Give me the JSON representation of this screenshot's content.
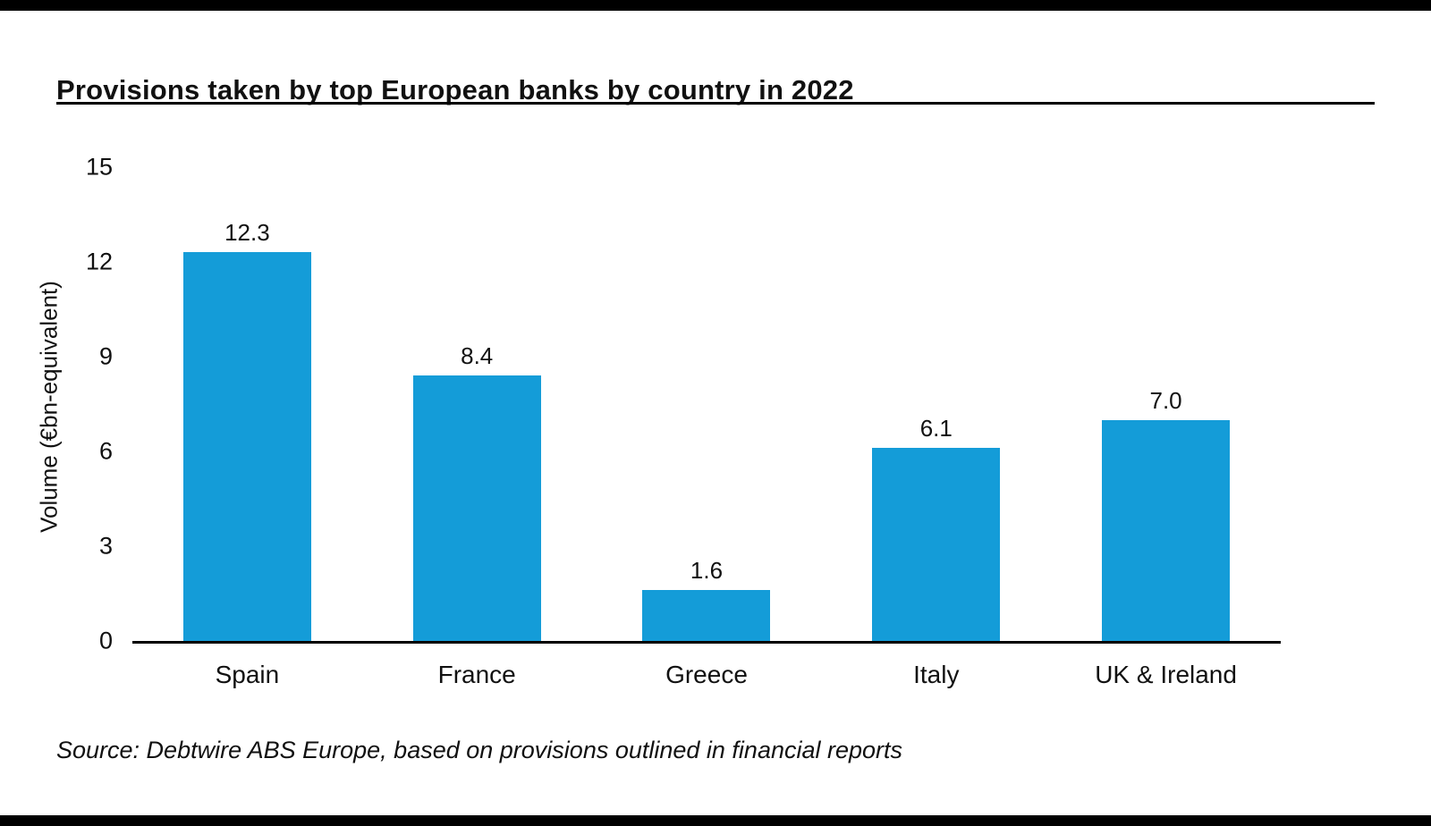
{
  "header": {
    "title": "Provisions taken by top European banks by country in 2022"
  },
  "chart_data": {
    "type": "bar",
    "title": "Provisions taken by top European banks by country in 2022",
    "categories": [
      "Spain",
      "France",
      "Greece",
      "Italy",
      "UK & Ireland"
    ],
    "values": [
      12.3,
      8.4,
      1.6,
      6.1,
      7.0
    ],
    "value_labels": [
      "12.3",
      "8.4",
      "1.6",
      "6.1",
      "7.0"
    ],
    "xlabel": "",
    "ylabel": "Volume (€bn-equivalent)",
    "ylim": [
      0,
      15
    ],
    "yticks": [
      0,
      3,
      6,
      9,
      12,
      15
    ],
    "grid": false,
    "legend": "none",
    "bar_color": "#149CD8"
  },
  "footer": {
    "source": "Source: Debtwire ABS Europe, based on provisions outlined in financial reports"
  }
}
